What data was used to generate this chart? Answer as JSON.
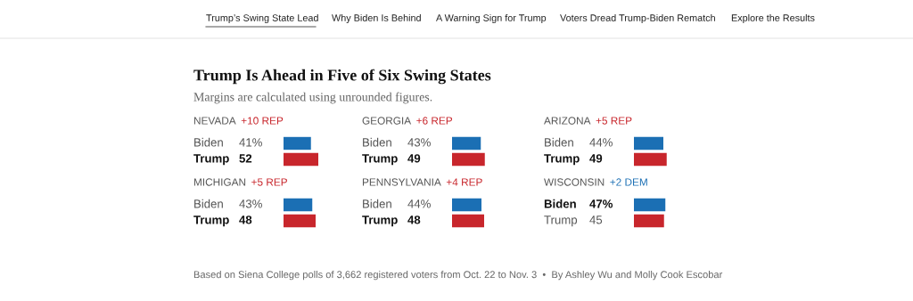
{
  "chart_data": [
    {
      "type": "other",
      "title": "Trump Is Ahead in Five of Six Swing States",
      "subtitle": "Margins are calculated using unrounded figures.",
      "annotations": [
        "Trump’s Swing State Lead",
        "Why Biden Is Behind",
        "A Warning Sign for Trump",
        "Voters Dread Trump-Biden Rematch",
        "Explore the Results",
        "Based on Siena College polls of 3,662 registered voters from Oct. 22 to Nov. 3  •  By Ashley Wu and Molly Cook Escobar"
      ]
    },
    {
      "type": "bar",
      "orientation": "horizontal",
      "title": "NEVADA",
      "subtitle": "+10 REP",
      "categories": [
        "Biden",
        "Trump"
      ],
      "values": [
        41,
        52
      ],
      "colors": [
        "#1b6fb4",
        "#c8262c"
      ],
      "value_labels": [
        "41%",
        "52"
      ]
    },
    {
      "type": "bar",
      "orientation": "horizontal",
      "title": "GEORGIA",
      "subtitle": "+6 REP",
      "categories": [
        "Biden",
        "Trump"
      ],
      "values": [
        43,
        49
      ],
      "colors": [
        "#1b6fb4",
        "#c8262c"
      ],
      "value_labels": [
        "43%",
        "49"
      ]
    },
    {
      "type": "bar",
      "orientation": "horizontal",
      "title": "ARIZONA",
      "subtitle": "+5 REP",
      "categories": [
        "Biden",
        "Trump"
      ],
      "values": [
        44,
        49
      ],
      "colors": [
        "#1b6fb4",
        "#c8262c"
      ],
      "value_labels": [
        "44%",
        "49"
      ]
    },
    {
      "type": "bar",
      "orientation": "horizontal",
      "title": "MICHIGAN",
      "subtitle": "+5 REP",
      "categories": [
        "Biden",
        "Trump"
      ],
      "values": [
        43,
        48
      ],
      "colors": [
        "#1b6fb4",
        "#c8262c"
      ],
      "value_labels": [
        "43%",
        "48"
      ]
    },
    {
      "type": "bar",
      "orientation": "horizontal",
      "title": "PENNSYLVANIA",
      "subtitle": "+4 REP",
      "categories": [
        "Biden",
        "Trump"
      ],
      "values": [
        44,
        48
      ],
      "colors": [
        "#1b6fb4",
        "#c8262c"
      ],
      "value_labels": [
        "44%",
        "48"
      ]
    },
    {
      "type": "bar",
      "orientation": "horizontal",
      "title": "WISCONSIN",
      "subtitle": "+2 DEM",
      "categories": [
        "Biden",
        "Trump"
      ],
      "values": [
        47,
        45
      ],
      "colors": [
        "#1b6fb4",
        "#c8262c"
      ],
      "value_labels": [
        "47%",
        "45"
      ]
    }
  ]
}
